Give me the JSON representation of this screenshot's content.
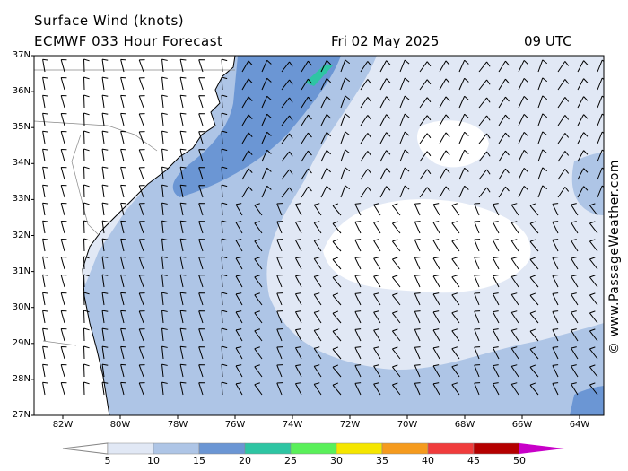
{
  "header": {
    "title": "Surface Wind (knots)",
    "model": "ECMWF 033 Hour Forecast",
    "date": "Fri 02 May 2025",
    "time": "09 UTC"
  },
  "map": {
    "lat_labels": [
      "37N",
      "36N",
      "35N",
      "34N",
      "33N",
      "32N",
      "31N",
      "30N",
      "29N",
      "28N",
      "27N"
    ],
    "lon_labels": [
      "82W",
      "80W",
      "78W",
      "76W",
      "74W",
      "72W",
      "70W",
      "68W",
      "66W",
      "64W"
    ],
    "credit": "© www.PassageWeather.com",
    "colors": {
      "land": "#ffffff",
      "c0_5": "#e1e8f5",
      "c5_10": "#aec5e6",
      "c10_15": "#6b96d4",
      "c15_20": "#2ec5a3"
    }
  },
  "legend": {
    "values": [
      "5",
      "10",
      "15",
      "20",
      "25",
      "30",
      "35",
      "40",
      "45",
      "50"
    ],
    "colors": [
      "#ffffff",
      "#e1e8f5",
      "#aec5e6",
      "#6b96d4",
      "#2ec5a3",
      "#5af05a",
      "#f5e600",
      "#f59b1e",
      "#f03c3c",
      "#b40000",
      "#c800c8"
    ]
  }
}
